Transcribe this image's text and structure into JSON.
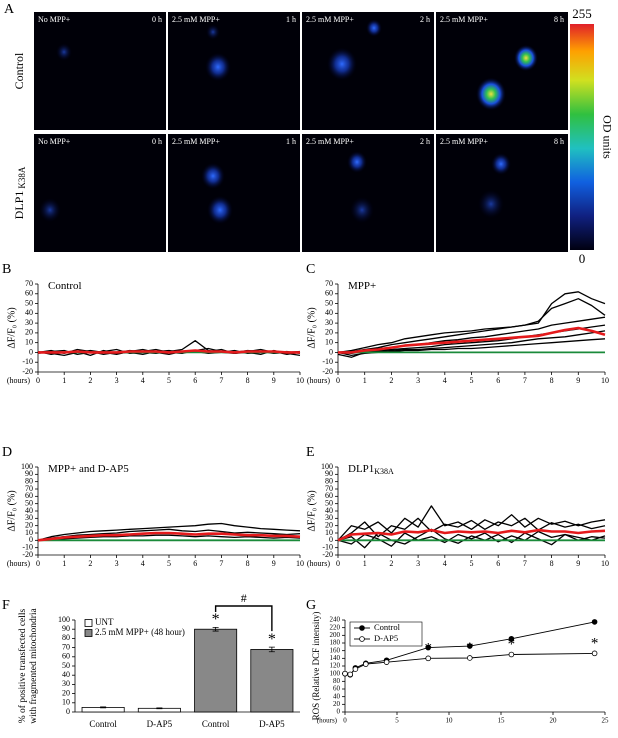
{
  "panel_a": {
    "panel": "A",
    "rows": [
      {
        "label": "Control",
        "cells": [
          [
            "No MPP+",
            "0 h"
          ],
          [
            "2.5 mM MPP+",
            "1 h"
          ],
          [
            "2.5 mM MPP+",
            "2 h"
          ],
          [
            "2.5 mM MPP+",
            "8 h"
          ]
        ]
      },
      {
        "label": "DLP1",
        "subscript": "K38A",
        "cells": [
          [
            "No MPP+",
            "0 h"
          ],
          [
            "2.5 mM MPP+",
            "1 h"
          ],
          [
            "2.5 mM MPP+",
            "2 h"
          ],
          [
            "2.5 mM MPP+",
            "8 h"
          ]
        ]
      }
    ],
    "colorbar": {
      "label": "OD units",
      "ylim": [
        0,
        255
      ],
      "yticks": [
        0,
        255
      ]
    }
  },
  "chart_data": [
    {
      "type": "line",
      "panel": "B",
      "title": "Control",
      "ylabel": "ΔF/F₀ (%)",
      "xlabel": "(hours)",
      "x": [
        0,
        0.5,
        1,
        1.5,
        2,
        2.5,
        3,
        3.5,
        4,
        4.5,
        5,
        5.5,
        6,
        6.5,
        7,
        7.5,
        8,
        8.5,
        9,
        9.5,
        10
      ],
      "xlim": [
        0,
        10
      ],
      "xticks": [
        0,
        1,
        2,
        3,
        4,
        5,
        6,
        7,
        8,
        9,
        10
      ],
      "ylim": [
        -20,
        70
      ],
      "yticks": [
        -20,
        -10,
        0,
        10,
        20,
        30,
        40,
        50,
        60,
        70
      ],
      "series": [
        {
          "color": "#000000",
          "values": [
            0,
            2,
            -1,
            3,
            1,
            -2,
            0,
            2,
            1,
            3,
            0,
            -1,
            2,
            4,
            1,
            0,
            2,
            1,
            -1,
            0,
            1
          ]
        },
        {
          "color": "#000000",
          "values": [
            1,
            -2,
            0,
            1,
            -3,
            2,
            -1,
            0,
            -2,
            1,
            2,
            0,
            1,
            -1,
            0,
            2,
            -1,
            0,
            1,
            -2,
            0
          ]
        },
        {
          "color": "#000000",
          "values": [
            -1,
            1,
            2,
            -2,
            0,
            1,
            3,
            -1,
            0,
            -1,
            1,
            3,
            12,
            2,
            0,
            -1,
            1,
            3,
            0,
            1,
            -1
          ]
        },
        {
          "color": "#000000",
          "values": [
            0,
            -1,
            -3,
            0,
            2,
            0,
            -2,
            1,
            3,
            0,
            -2,
            1,
            0,
            1,
            3,
            -1,
            0,
            -2,
            2,
            -1,
            -3
          ]
        },
        {
          "color": "#1a8a3a",
          "values": [
            0,
            0,
            0,
            0,
            0,
            0,
            0,
            0,
            0,
            0,
            0,
            0,
            0,
            0,
            0,
            0,
            0,
            0,
            0,
            0,
            0
          ]
        },
        {
          "color": "#e41a1c",
          "values": [
            0,
            0,
            0,
            1,
            0,
            0,
            0,
            1,
            1,
            1,
            0,
            1,
            2,
            1,
            1,
            0,
            1,
            1,
            1,
            0,
            0
          ]
        }
      ]
    },
    {
      "type": "line",
      "panel": "C",
      "title": "MPP+",
      "ylabel": "ΔF/F₀ (%)",
      "xlabel": "(hours)",
      "x": [
        0,
        0.5,
        1,
        1.5,
        2,
        2.5,
        3,
        3.5,
        4,
        4.5,
        5,
        5.5,
        6,
        6.5,
        7,
        7.5,
        8,
        8.5,
        9,
        9.5,
        10
      ],
      "xlim": [
        0,
        10
      ],
      "xticks": [
        0,
        1,
        2,
        3,
        4,
        5,
        6,
        7,
        8,
        9,
        10
      ],
      "ylim": [
        -20,
        70
      ],
      "yticks": [
        -20,
        -10,
        0,
        10,
        20,
        30,
        40,
        50,
        60,
        70
      ],
      "series": [
        {
          "color": "#000000",
          "values": [
            0,
            2,
            5,
            8,
            10,
            14,
            16,
            18,
            20,
            21,
            22,
            24,
            25,
            26,
            28,
            30,
            50,
            60,
            62,
            55,
            50
          ]
        },
        {
          "color": "#000000",
          "values": [
            0,
            1,
            3,
            5,
            8,
            10,
            12,
            14,
            16,
            18,
            20,
            22,
            24,
            26,
            28,
            32,
            45,
            50,
            55,
            48,
            38
          ]
        },
        {
          "color": "#000000",
          "values": [
            0,
            0,
            2,
            4,
            5,
            7,
            8,
            10,
            12,
            13,
            15,
            16,
            18,
            20,
            22,
            24,
            28,
            30,
            32,
            34,
            36
          ]
        },
        {
          "color": "#000000",
          "values": [
            0,
            -1,
            1,
            2,
            3,
            4,
            5,
            6,
            8,
            9,
            10,
            11,
            12,
            14,
            16,
            18,
            20,
            22,
            24,
            26,
            28
          ]
        },
        {
          "color": "#000000",
          "values": [
            -2,
            -5,
            0,
            1,
            2,
            3,
            3,
            4,
            5,
            6,
            7,
            8,
            9,
            10,
            12,
            14,
            15,
            16,
            18,
            20,
            22
          ]
        },
        {
          "color": "#000000",
          "values": [
            0,
            -3,
            -1,
            0,
            1,
            2,
            2,
            3,
            3,
            4,
            4,
            5,
            6,
            7,
            8,
            9,
            10,
            11,
            12,
            13,
            14
          ]
        },
        {
          "color": "#1a8a3a",
          "values": [
            0,
            0,
            0,
            0,
            0,
            0,
            0,
            0,
            0,
            0,
            0,
            0,
            0,
            0,
            0,
            0,
            0,
            0,
            0,
            0,
            0
          ]
        },
        {
          "color": "#e41a1c",
          "values": [
            0,
            0,
            2,
            3,
            5,
            7,
            8,
            9,
            10,
            11,
            12,
            13,
            14,
            15,
            16,
            17,
            20,
            23,
            25,
            22,
            18
          ]
        }
      ]
    },
    {
      "type": "line",
      "panel": "D",
      "title": "MPP+ and D-AP5",
      "ylabel": "ΔF/F₀ (%)",
      "xlabel": "(hours)",
      "x": [
        0,
        0.5,
        1,
        1.5,
        2,
        2.5,
        3,
        3.5,
        4,
        4.5,
        5,
        5.5,
        6,
        6.5,
        7,
        7.5,
        8,
        8.5,
        9,
        9.5,
        10
      ],
      "xlim": [
        0,
        10
      ],
      "xticks": [
        0,
        1,
        2,
        3,
        4,
        5,
        6,
        7,
        8,
        9,
        10
      ],
      "ylim": [
        -20,
        100
      ],
      "yticks": [
        -20,
        -10,
        0,
        10,
        20,
        30,
        40,
        50,
        60,
        70,
        80,
        90,
        100
      ],
      "series": [
        {
          "color": "#000000",
          "values": [
            0,
            5,
            8,
            10,
            12,
            13,
            14,
            15,
            16,
            17,
            18,
            19,
            20,
            22,
            23,
            20,
            18,
            16,
            15,
            14,
            13
          ]
        },
        {
          "color": "#000000",
          "values": [
            0,
            3,
            5,
            7,
            8,
            9,
            10,
            12,
            13,
            14,
            15,
            13,
            12,
            14,
            12,
            10,
            11,
            10,
            9,
            8,
            9
          ]
        },
        {
          "color": "#000000",
          "values": [
            0,
            2,
            3,
            5,
            6,
            6,
            7,
            8,
            9,
            10,
            10,
            9,
            8,
            9,
            10,
            8,
            7,
            6,
            7,
            6,
            5
          ]
        },
        {
          "color": "#000000",
          "values": [
            0,
            0,
            2,
            3,
            4,
            5,
            5,
            6,
            6,
            7,
            7,
            6,
            5,
            6,
            5,
            4,
            5,
            4,
            3,
            4,
            3
          ]
        },
        {
          "color": "#1a8a3a",
          "values": [
            0,
            0,
            0,
            0,
            0,
            0,
            0,
            0,
            0,
            0,
            0,
            0,
            0,
            0,
            0,
            0,
            0,
            0,
            0,
            0,
            0
          ]
        },
        {
          "color": "#e41a1c",
          "values": [
            0,
            2,
            4,
            5,
            6,
            7,
            7,
            8,
            9,
            10,
            10,
            9,
            8,
            9,
            9,
            8,
            7,
            7,
            6,
            6,
            5
          ]
        }
      ]
    },
    {
      "type": "line",
      "panel": "E",
      "title": "DLP1",
      "title_subscript": "K38A",
      "ylabel": "ΔF/F₀ (%)",
      "xlabel": "(hours)",
      "x": [
        0,
        0.5,
        1,
        1.5,
        2,
        2.5,
        3,
        3.5,
        4,
        4.5,
        5,
        5.5,
        6,
        6.5,
        7,
        7.5,
        8,
        8.5,
        9,
        9.5,
        10
      ],
      "xlim": [
        0,
        10
      ],
      "xticks": [
        0,
        1,
        2,
        3,
        4,
        5,
        6,
        7,
        8,
        9,
        10
      ],
      "ylim": [
        -20,
        100
      ],
      "yticks": [
        -20,
        -10,
        0,
        10,
        20,
        30,
        40,
        50,
        60,
        70,
        80,
        90,
        100
      ],
      "series": [
        {
          "color": "#000000",
          "values": [
            0,
            20,
            15,
            25,
            10,
            30,
            18,
            47,
            20,
            25,
            15,
            28,
            20,
            35,
            18,
            30,
            22,
            26,
            20,
            25,
            28
          ]
        },
        {
          "color": "#000000",
          "values": [
            0,
            10,
            25,
            5,
            20,
            15,
            30,
            12,
            22,
            18,
            27,
            15,
            25,
            20,
            30,
            14,
            24,
            18,
            22,
            16,
            20
          ]
        },
        {
          "color": "#000000",
          "values": [
            0,
            -5,
            8,
            2,
            -8,
            10,
            0,
            5,
            -3,
            8,
            2,
            10,
            -2,
            6,
            0,
            12,
            4,
            8,
            0,
            5,
            3
          ]
        },
        {
          "color": "#000000",
          "values": [
            0,
            5,
            -10,
            10,
            0,
            -5,
            5,
            15,
            2,
            -4,
            6,
            0,
            8,
            -3,
            10,
            2,
            -6,
            8,
            4,
            0,
            6
          ]
        },
        {
          "color": "#1a8a3a",
          "values": [
            0,
            0,
            0,
            0,
            0,
            0,
            0,
            0,
            0,
            0,
            0,
            0,
            0,
            0,
            0,
            0,
            0,
            0,
            0,
            0,
            0
          ]
        },
        {
          "color": "#e41a1c",
          "values": [
            0,
            8,
            9,
            10,
            8,
            12,
            11,
            14,
            10,
            12,
            11,
            12,
            10,
            13,
            11,
            14,
            12,
            12,
            10,
            12,
            13
          ]
        }
      ]
    },
    {
      "type": "bar",
      "panel": "F",
      "ylabel": [
        "% of positive transfected cells",
        "with fragmented mitochondria"
      ],
      "categories": [
        "Control",
        "D-AP5",
        "Control",
        "D-AP5"
      ],
      "ylim": [
        0,
        100
      ],
      "yticks": [
        0,
        10,
        20,
        30,
        40,
        50,
        60,
        70,
        80,
        90,
        100
      ],
      "series": [
        {
          "name": "UNT",
          "color": "#ffffff",
          "values": [
            5,
            4,
            null,
            null
          ],
          "errors": [
            0.5,
            0.4,
            null,
            null
          ]
        },
        {
          "name": "2.5 mM MPP+ (48 hour)",
          "color": "#888888",
          "values": [
            null,
            null,
            90,
            68
          ],
          "errors": [
            null,
            null,
            2,
            2.5
          ]
        }
      ],
      "sig_labels": [
        null,
        null,
        "*",
        "*"
      ],
      "bracket_label": "#"
    },
    {
      "type": "scatter-line",
      "panel": "G",
      "ylabel": "ROS (Relative DCF intensity)",
      "xlabel": "(hours)",
      "x": [
        0,
        0.5,
        1,
        2,
        4,
        8,
        12,
        16,
        24
      ],
      "xlim": [
        0,
        25
      ],
      "xticks": [
        0,
        5,
        10,
        15,
        20,
        25
      ],
      "ylim": [
        0,
        240
      ],
      "yticks": [
        0,
        20,
        40,
        60,
        80,
        100,
        120,
        140,
        160,
        180,
        200,
        220,
        240
      ],
      "series": [
        {
          "name": "Control",
          "color": "#000000",
          "marker_fill": "#000000",
          "values": [
            100,
            97,
            115,
            127,
            135,
            168,
            172,
            191,
            235
          ],
          "errors": [
            3,
            3,
            4,
            3,
            3,
            2,
            3,
            3,
            3
          ]
        },
        {
          "name": "D-AP5",
          "color": "#000000",
          "marker_fill": "#ffffff",
          "values": [
            100,
            98,
            112,
            125,
            130,
            140,
            141,
            150,
            153
          ],
          "errors": [
            3,
            3,
            3,
            3,
            3,
            3,
            3,
            4,
            3
          ]
        }
      ],
      "annotations": [
        {
          "text": "*",
          "x": 8
        },
        {
          "text": "*",
          "x": 12
        },
        {
          "text": "*",
          "x": 16
        },
        {
          "text": "*",
          "x": 24
        }
      ]
    }
  ]
}
